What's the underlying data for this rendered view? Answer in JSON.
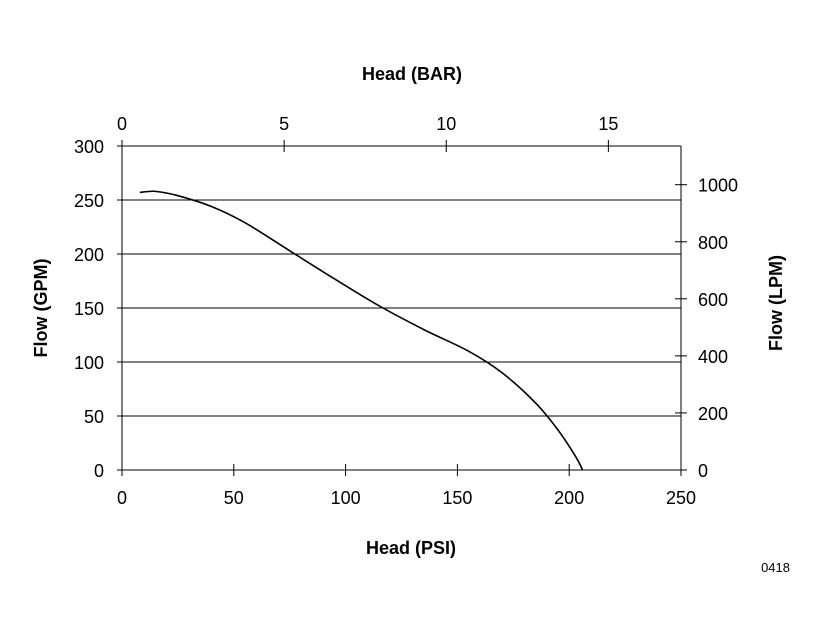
{
  "chart_data": {
    "type": "line",
    "title": "",
    "xlabel": "Head (PSI)",
    "ylabel": "Flow (GPM)",
    "x2label": "Head (BAR)",
    "y2label": "Flow (LPM)",
    "xlim": [
      0,
      250
    ],
    "ylim": [
      0,
      300
    ],
    "x2lim": [
      0,
      17.24
    ],
    "y2lim": [
      0,
      1135.6
    ],
    "xticks": [
      "0",
      "50",
      "100",
      "150",
      "200",
      "250"
    ],
    "yticks": [
      "0",
      "50",
      "100",
      "150",
      "200",
      "250",
      "300"
    ],
    "x2ticks": [
      "0",
      "5",
      "10",
      "15"
    ],
    "y2ticks": [
      "0",
      "200",
      "400",
      "600",
      "800",
      "1000"
    ],
    "grid": "horizontal",
    "legend": "none",
    "series": [
      {
        "x": [
          8,
          15,
          25,
          40,
          55,
          75,
          95,
          115,
          135,
          155,
          170,
          185,
          195,
          203,
          206
        ],
        "y": [
          257,
          258,
          254,
          244,
          229,
          203,
          177,
          152,
          130,
          110,
          90,
          62,
          37,
          12,
          0
        ]
      }
    ],
    "figure_code": "0418"
  }
}
